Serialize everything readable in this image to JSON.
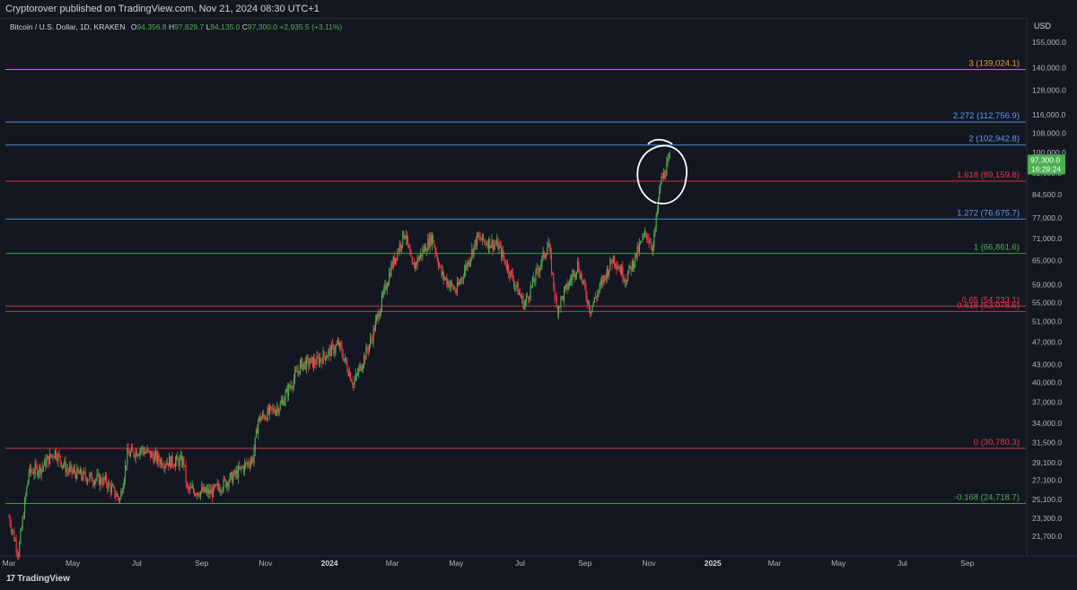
{
  "header": {
    "published_text": "Cryptorover published on TradingView.com, Nov 21, 2024 08:30 UTC+1"
  },
  "legend": {
    "symbol": "Bitcoin / U.S. Dollar, 1D, KRAKEN",
    "open_key": "O",
    "open": "94,356.8",
    "high_key": "H",
    "high": "97,829.7",
    "low_key": "L",
    "low": "94,135.0",
    "close_key": "C",
    "close": "97,300.0",
    "change": "+2,935.5 (+3.11%)"
  },
  "currency_label": "USD",
  "price_badge": {
    "price": "97,300.0",
    "countdown": "16:29:24",
    "color": "#4caf50"
  },
  "footer": {
    "brand": "TradingView",
    "logo_mark": "17"
  },
  "chart_data": {
    "type": "candlestick",
    "symbol": "Bitcoin / U.S. Dollar",
    "interval": "1D",
    "exchange": "KRAKEN",
    "y_scale": "log",
    "ylim": [
      20000,
      165000
    ],
    "grid": false,
    "y_ticks": [
      155000,
      140000,
      128000,
      116000,
      108000,
      100000,
      92000,
      84500,
      77000,
      71000,
      65000,
      59000,
      55000,
      51000,
      47000,
      43000,
      40000,
      37000,
      34000,
      31500,
      29100,
      27100,
      25100,
      23300,
      21700
    ],
    "y_tick_labels": [
      "155,000.0",
      "140,000.0",
      "128,000.0",
      "116,000.0",
      "108,000.0",
      "100,000.0",
      "92,000.0",
      "84,500.0",
      "77,000.0",
      "71,000.0",
      "65,000.0",
      "59,000.0",
      "55,000.0",
      "51,000.0",
      "47,000.0",
      "43,000.0",
      "40,000.0",
      "37,000.0",
      "34,000.0",
      "31,500.0",
      "29,100.0",
      "27,100.0",
      "25,100.0",
      "23,300.0",
      "21,700.0"
    ],
    "x_range": [
      "2023-03-01",
      "2025-10-28"
    ],
    "x_ticks": [
      {
        "date": "2023-03-01",
        "label": "Mar"
      },
      {
        "date": "2023-05-01",
        "label": "May"
      },
      {
        "date": "2023-07-01",
        "label": "Jul"
      },
      {
        "date": "2023-09-01",
        "label": "Sep"
      },
      {
        "date": "2023-11-01",
        "label": "Nov"
      },
      {
        "date": "2024-01-01",
        "label": "2024",
        "bold": true
      },
      {
        "date": "2024-03-01",
        "label": "Mar"
      },
      {
        "date": "2024-05-01",
        "label": "May"
      },
      {
        "date": "2024-07-01",
        "label": "Jul"
      },
      {
        "date": "2024-09-01",
        "label": "Sep"
      },
      {
        "date": "2024-11-01",
        "label": "Nov"
      },
      {
        "date": "2025-01-01",
        "label": "2025",
        "bold": true
      },
      {
        "date": "2025-03-01",
        "label": "Mar"
      },
      {
        "date": "2025-05-01",
        "label": "May"
      },
      {
        "date": "2025-07-01",
        "label": "Jul"
      },
      {
        "date": "2025-09-01",
        "label": "Sep"
      }
    ],
    "close_path": [
      [
        "2023-03-01",
        23400
      ],
      [
        "2023-03-10",
        20300
      ],
      [
        "2023-03-20",
        28000
      ],
      [
        "2023-04-01",
        28500
      ],
      [
        "2023-04-14",
        30400
      ],
      [
        "2023-04-25",
        28300
      ],
      [
        "2023-05-10",
        27600
      ],
      [
        "2023-06-01",
        27000
      ],
      [
        "2023-06-15",
        25100
      ],
      [
        "2023-06-22",
        30000
      ],
      [
        "2023-07-05",
        30700
      ],
      [
        "2023-07-25",
        29200
      ],
      [
        "2023-08-15",
        29200
      ],
      [
        "2023-08-18",
        26100
      ],
      [
        "2023-09-10",
        25800
      ],
      [
        "2023-10-01",
        27500
      ],
      [
        "2023-10-20",
        29600
      ],
      [
        "2023-10-25",
        34500
      ],
      [
        "2023-11-15",
        36500
      ],
      [
        "2023-12-05",
        43000
      ],
      [
        "2023-12-20",
        43500
      ],
      [
        "2024-01-10",
        46500
      ],
      [
        "2024-01-24",
        39800
      ],
      [
        "2024-02-10",
        47500
      ],
      [
        "2024-02-28",
        62500
      ],
      [
        "2024-03-13",
        73000
      ],
      [
        "2024-03-20",
        63000
      ],
      [
        "2024-04-08",
        71500
      ],
      [
        "2024-04-17",
        61500
      ],
      [
        "2024-05-01",
        57500
      ],
      [
        "2024-05-21",
        71000
      ],
      [
        "2024-06-10",
        69000
      ],
      [
        "2024-07-05",
        54500
      ],
      [
        "2024-07-28",
        69500
      ],
      [
        "2024-08-05",
        53500
      ],
      [
        "2024-08-25",
        64000
      ],
      [
        "2024-09-06",
        53500
      ],
      [
        "2024-09-28",
        65800
      ],
      [
        "2024-10-10",
        60500
      ],
      [
        "2024-10-29",
        72500
      ],
      [
        "2024-11-05",
        68500
      ],
      [
        "2024-11-12",
        88500
      ],
      [
        "2024-11-21",
        97300
      ]
    ],
    "last_bar": {
      "date": "2024-11-21",
      "open": 94356.8,
      "high": 97829.7,
      "low": 94135.0,
      "close": 97300.0,
      "change": 2935.5,
      "change_pct": 3.11
    },
    "fib_levels": [
      {
        "label": "3 (139,024.1)",
        "value": 139024.1,
        "color": "#f39c32"
      },
      {
        "label": "2.272 (112,756.9)",
        "value": 112756.9,
        "color": "#5b9cf6"
      },
      {
        "label": "2 (102,942.8)",
        "value": 102942.8,
        "color": "#5b9cf6"
      },
      {
        "label": "1.618 (89,159.8)",
        "value": 89159.8,
        "color": "#f23645"
      },
      {
        "label": "1.272 (76,675.7)",
        "value": 76675.7,
        "color": "#5b9cf6"
      },
      {
        "label": "1 (66,861.6)",
        "value": 66861.6,
        "color": "#4caf50"
      },
      {
        "label": "0.65 (54,233.1)",
        "value": 54233.1,
        "color": "#f23645"
      },
      {
        "label": "0.618 (53,078.5)",
        "value": 53078.5,
        "color": "#f23645"
      },
      {
        "label": "0 (30,780.3)",
        "value": 30780.3,
        "color": "#f23645"
      },
      {
        "label": "-0.168 (24,718.7)",
        "value": 24718.7,
        "color": "#4caf50"
      }
    ],
    "annotation": {
      "type": "hand-drawn circle",
      "color": "#ffffff",
      "date": "2024-11-16",
      "value": 91000
    },
    "colors": {
      "up": "#4caf50",
      "down": "#f23645",
      "background": "#131722"
    }
  }
}
